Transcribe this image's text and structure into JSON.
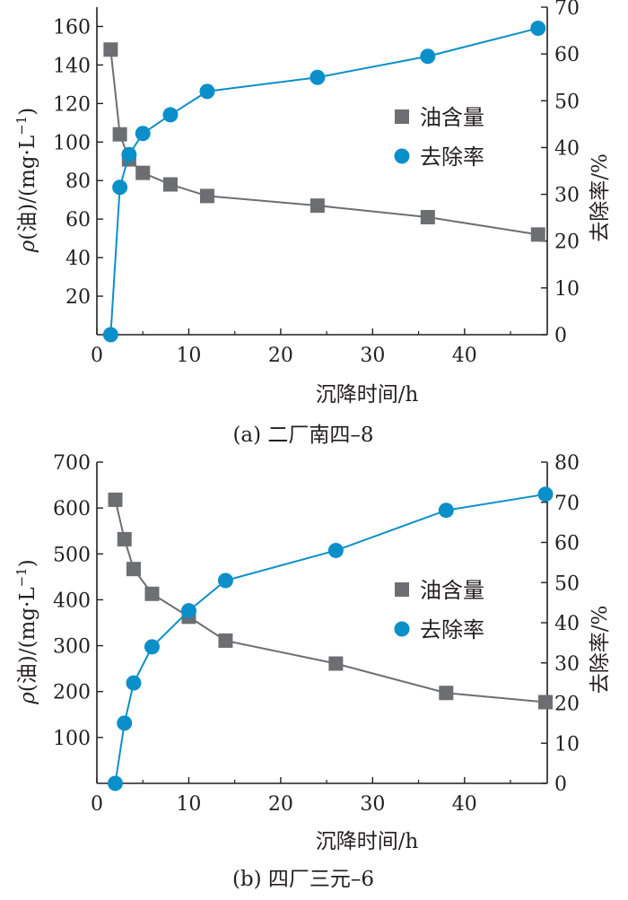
{
  "colors": {
    "oil": "#6d6e71",
    "removal": "#0b8fc9",
    "axis": "#231f20"
  },
  "chart_data": [
    {
      "type": "line",
      "caption": "(a)  二厂南四–8",
      "xlabel": "沉降时间/h",
      "ylabel_left_prefix": "ρ",
      "ylabel_left_rest": "(油)/(mg·L",
      "ylabel_left_sup": "−1",
      "ylabel_left_close": ")",
      "ylabel_right": "去除率/%",
      "xlim": [
        0,
        49
      ],
      "ylim_left": [
        0,
        170
      ],
      "ylim_right": [
        0,
        70
      ],
      "xticks": [
        0,
        10,
        20,
        30,
        40
      ],
      "yticks_left": [
        20,
        40,
        60,
        80,
        100,
        120,
        140,
        160
      ],
      "yticks_right": [
        0,
        10,
        20,
        30,
        40,
        50,
        60,
        70
      ],
      "legend_position": "right",
      "series": [
        {
          "name": "油含量",
          "axis": "left",
          "marker": "square",
          "x": [
            1.5,
            2.5,
            3.5,
            5,
            8,
            12,
            24,
            36,
            48
          ],
          "y": [
            148,
            104,
            91,
            84,
            78,
            72,
            67,
            61,
            52
          ]
        },
        {
          "name": "去除率",
          "axis": "right",
          "marker": "circle",
          "x": [
            1.5,
            2.5,
            3.5,
            5,
            8,
            12,
            24,
            36,
            48
          ],
          "y": [
            0,
            31.5,
            38.5,
            43,
            47,
            52,
            55,
            59.5,
            65.5
          ]
        }
      ]
    },
    {
      "type": "line",
      "caption": "(b)  四厂三元–6",
      "xlabel": "沉降时间/h",
      "ylabel_left_prefix": "ρ",
      "ylabel_left_rest": "(油)/(mg·L",
      "ylabel_left_sup": "−1",
      "ylabel_left_close": ")",
      "ylabel_right": "去除率/%",
      "xlim": [
        0,
        49
      ],
      "ylim_left": [
        0,
        700
      ],
      "ylim_right": [
        0,
        80
      ],
      "xticks": [
        0,
        10,
        20,
        30,
        40
      ],
      "yticks_left": [
        100,
        200,
        300,
        400,
        500,
        600,
        700
      ],
      "yticks_right": [
        0,
        10,
        20,
        30,
        40,
        50,
        60,
        70,
        80
      ],
      "legend_position": "right",
      "series": [
        {
          "name": "油含量",
          "axis": "left",
          "marker": "square",
          "x": [
            2,
            3,
            4,
            6,
            10,
            14,
            26,
            38,
            50
          ],
          "y": [
            618,
            532,
            467,
            413,
            363,
            311,
            261,
            197,
            177
          ]
        },
        {
          "name": "去除率",
          "axis": "right",
          "marker": "circle",
          "x": [
            2,
            3,
            4,
            6,
            10,
            14,
            26,
            38,
            50
          ],
          "y": [
            0,
            15,
            25,
            34,
            43,
            50.5,
            58,
            68,
            72
          ]
        }
      ]
    }
  ]
}
